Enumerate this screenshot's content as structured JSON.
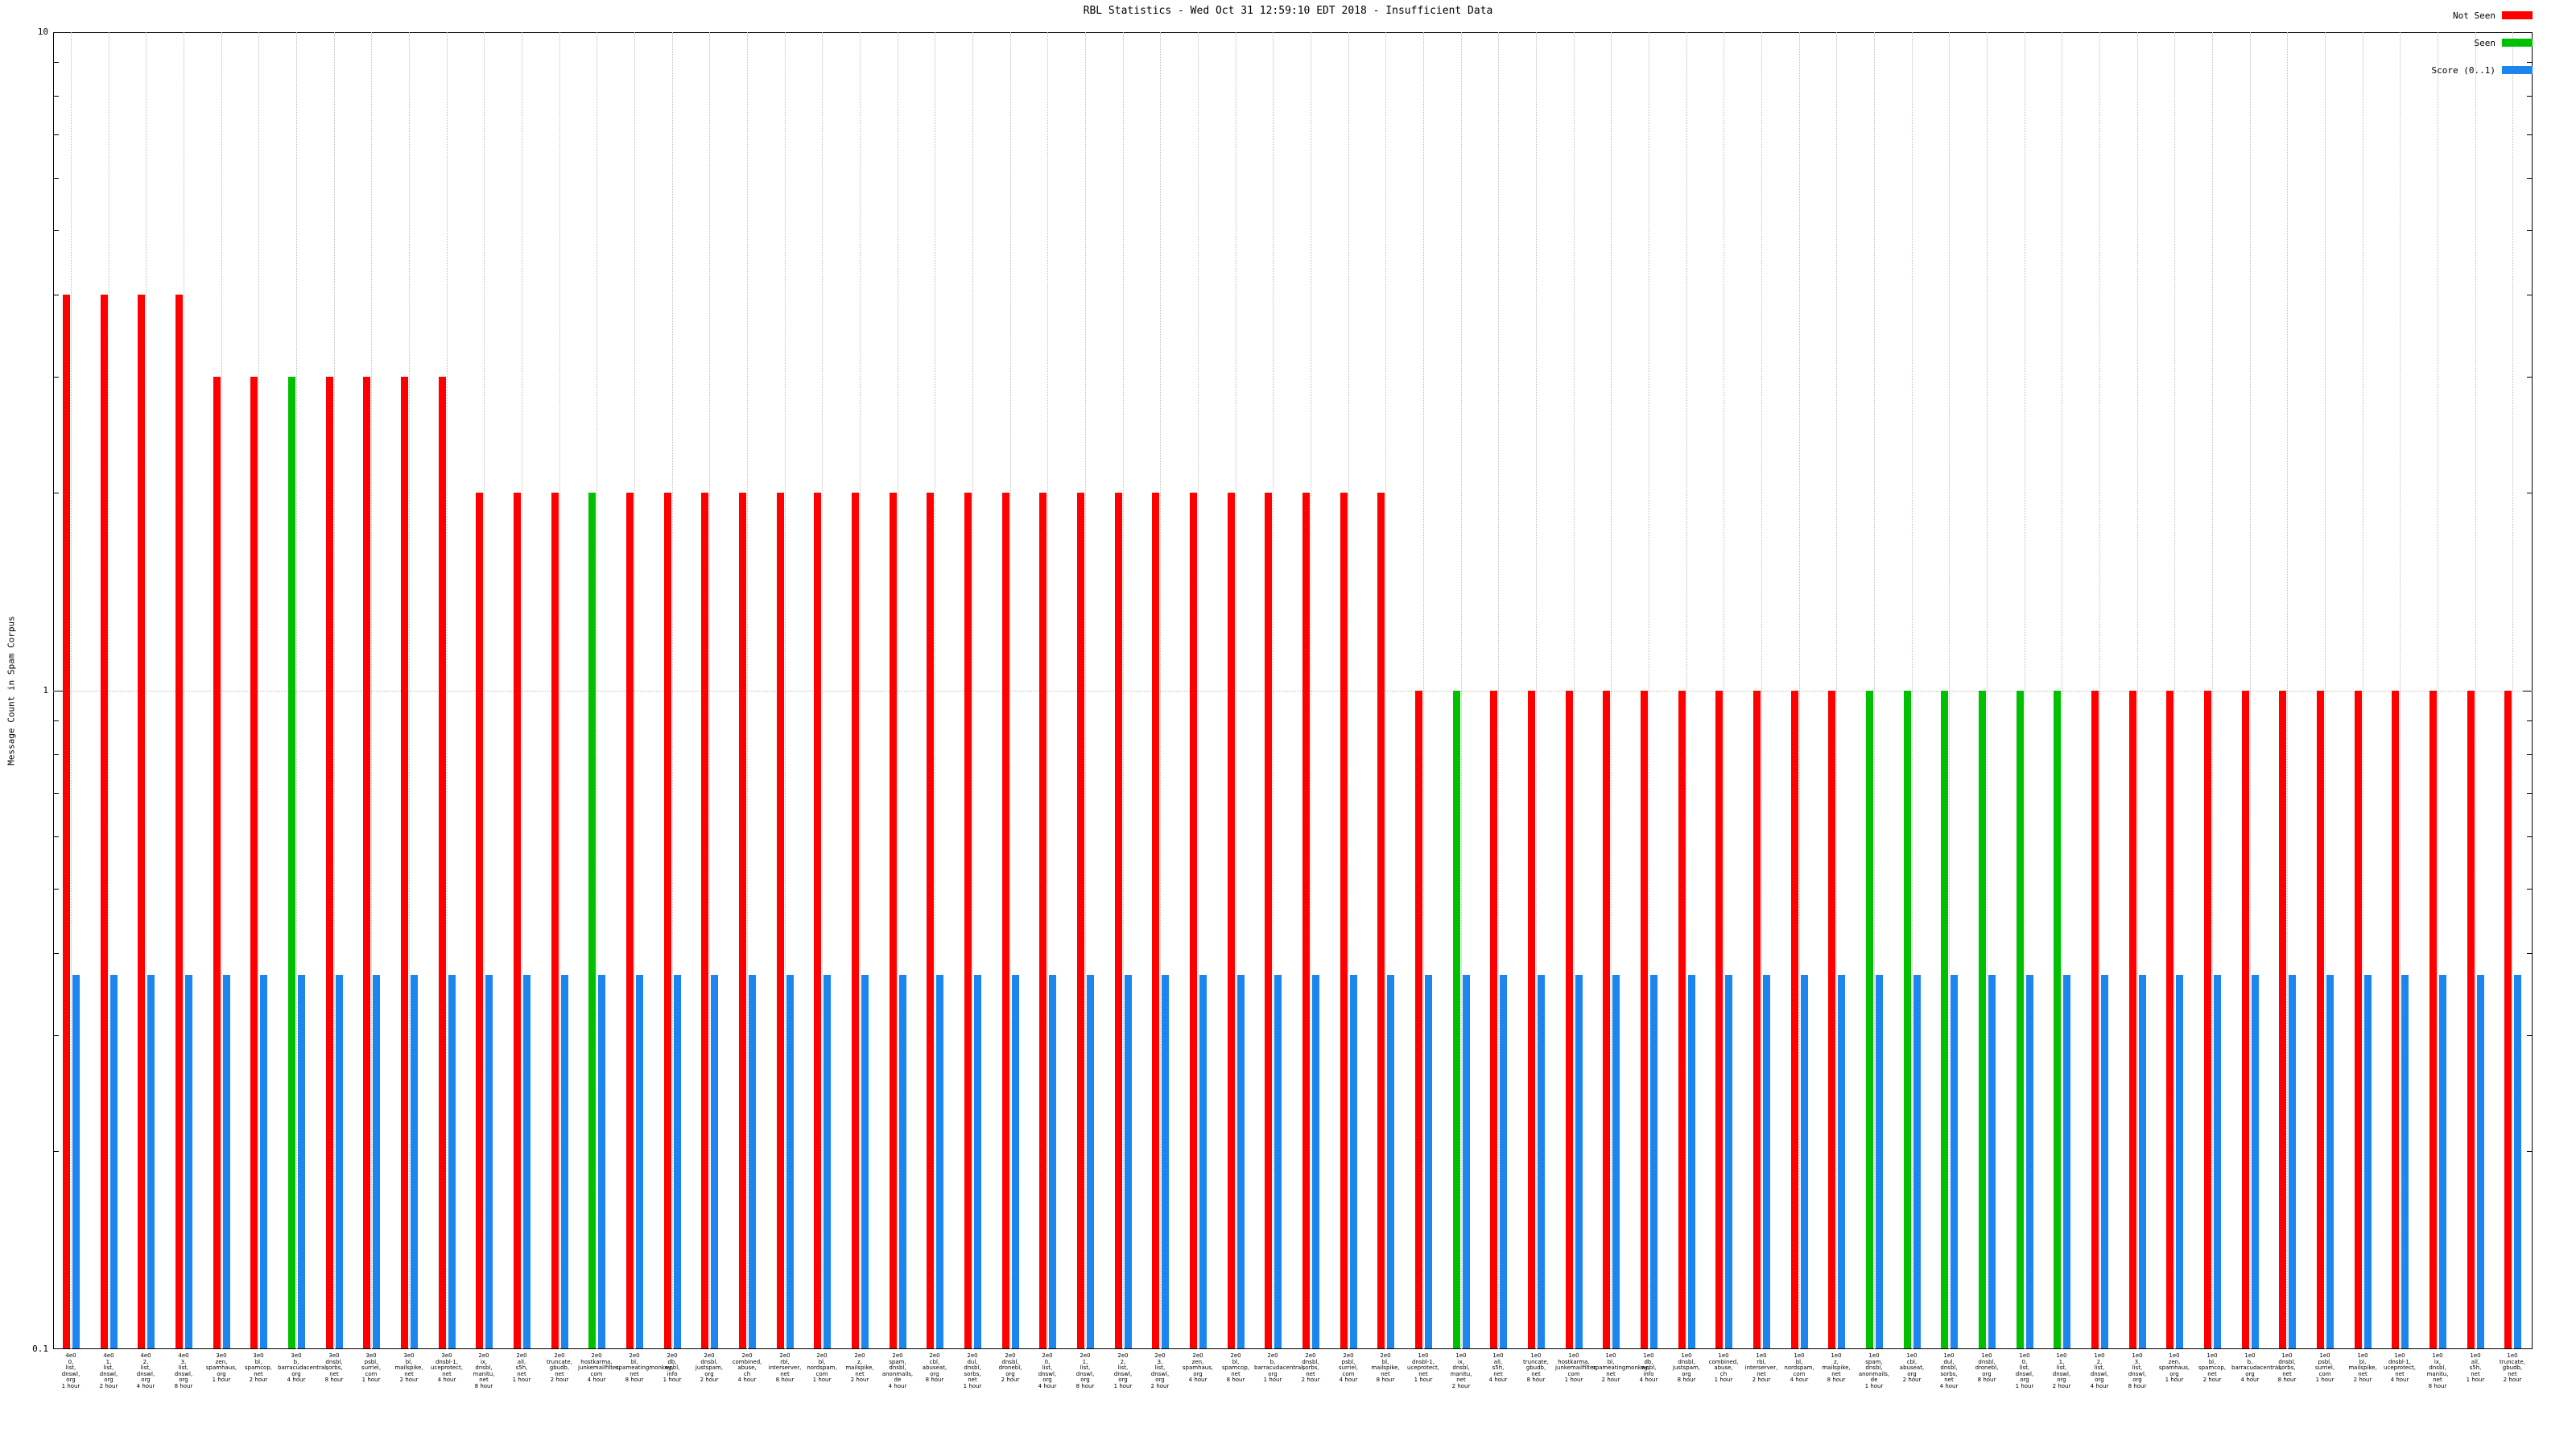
{
  "legend": [
    {
      "label": "Not Seen",
      "color": "#ff0000"
    },
    {
      "label": "Seen",
      "color": "#00c000"
    },
    {
      "label": "Score (0..1)",
      "color": "#1c86ee"
    }
  ],
  "chart_data": {
    "type": "bar",
    "title": "RBL Statistics - Wed Oct 31 12:59:10 EDT 2018 - Insufficient Data",
    "ylabel": "Message Count in Spam Corpus",
    "xlabel": "",
    "yscale": "log",
    "ylim": [
      0.1,
      10
    ],
    "yticks": [
      "10",
      "1",
      "0.1"
    ],
    "grid": "dotted",
    "legend_position": "top-right",
    "score_value": 0.37,
    "series": [
      {
        "name": "Not Seen",
        "color": "#ff0000",
        "role": "message-count-bar"
      },
      {
        "name": "Seen",
        "color": "#00c000",
        "role": "message-count-bar"
      },
      {
        "name": "Score (0..1)",
        "color": "#1c86ee",
        "role": "score-bar"
      }
    ],
    "groups": [
      {
        "host": "0.list.dnswl.org",
        "hours": "1 hour",
        "count": 4,
        "seen": false
      },
      {
        "host": "1.list.dnswl.org",
        "hours": "2 hour",
        "count": 4,
        "seen": false
      },
      {
        "host": "2.list.dnswl.org",
        "hours": "4 hour",
        "count": 4,
        "seen": false
      },
      {
        "host": "3.list.dnswl.org",
        "hours": "8 hour",
        "count": 4,
        "seen": false
      },
      {
        "host": "zen.spamhaus.org",
        "hours": "1 hour",
        "count": 3,
        "seen": false
      },
      {
        "host": "bl.spamcop.net",
        "hours": "2 hour",
        "count": 3,
        "seen": false
      },
      {
        "host": "b.barracudacentral.org",
        "hours": "4 hour",
        "count": 3,
        "seen": true
      },
      {
        "host": "dnsbl.sorbs.net",
        "hours": "8 hour",
        "count": 3,
        "seen": false
      },
      {
        "host": "psbl.surriel.com",
        "hours": "1 hour",
        "count": 3,
        "seen": false
      },
      {
        "host": "bl.mailspike.net",
        "hours": "2 hour",
        "count": 3,
        "seen": false
      },
      {
        "host": "dnsbl-1.uceprotect.net",
        "hours": "4 hour",
        "count": 3,
        "seen": false
      },
      {
        "host": "ix.dnsbl.manitu.net",
        "hours": "8 hour",
        "count": 2,
        "seen": false
      },
      {
        "host": "all.s5h.net",
        "hours": "1 hour",
        "count": 2,
        "seen": false
      },
      {
        "host": "truncate.gbudb.net",
        "hours": "2 hour",
        "count": 2,
        "seen": false
      },
      {
        "host": "hostkarma.junkemailfilter.com",
        "hours": "4 hour",
        "count": 2,
        "seen": true
      },
      {
        "host": "bl.spameatingmonkey.net",
        "hours": "8 hour",
        "count": 2,
        "seen": false
      },
      {
        "host": "db.wpbl.info",
        "hours": "1 hour",
        "count": 2,
        "seen": false
      },
      {
        "host": "dnsbl.justspam.org",
        "hours": "2 hour",
        "count": 2,
        "seen": false
      },
      {
        "host": "combined.abuse.ch",
        "hours": "4 hour",
        "count": 2,
        "seen": false
      },
      {
        "host": "rbl.interserver.net",
        "hours": "8 hour",
        "count": 2,
        "seen": false
      },
      {
        "host": "bl.nordspam.com",
        "hours": "1 hour",
        "count": 2,
        "seen": false
      },
      {
        "host": "z.mailspike.net",
        "hours": "2 hour",
        "count": 2,
        "seen": false
      },
      {
        "host": "spam.dnsbl.anonmails.de",
        "hours": "4 hour",
        "count": 2,
        "seen": false
      },
      {
        "host": "cbl.abuseat.org",
        "hours": "8 hour",
        "count": 2,
        "seen": false
      },
      {
        "host": "dul.dnsbl.sorbs.net",
        "hours": "1 hour",
        "count": 2,
        "seen": false
      },
      {
        "host": "dnsbl.dronebl.org",
        "hours": "2 hour",
        "count": 2,
        "seen": false
      },
      {
        "host": "0.list.dnswl.org",
        "hours": "4 hour",
        "count": 2,
        "seen": false
      },
      {
        "host": "1.list.dnswl.org",
        "hours": "8 hour",
        "count": 2,
        "seen": false
      },
      {
        "host": "2.list.dnswl.org",
        "hours": "1 hour",
        "count": 2,
        "seen": false
      },
      {
        "host": "3.list.dnswl.org",
        "hours": "2 hour",
        "count": 2,
        "seen": false
      },
      {
        "host": "zen.spamhaus.org",
        "hours": "4 hour",
        "count": 2,
        "seen": false
      },
      {
        "host": "bl.spamcop.net",
        "hours": "8 hour",
        "count": 2,
        "seen": false
      },
      {
        "host": "b.barracudacentral.org",
        "hours": "1 hour",
        "count": 2,
        "seen": false
      },
      {
        "host": "dnsbl.sorbs.net",
        "hours": "2 hour",
        "count": 2,
        "seen": false
      },
      {
        "host": "psbl.surriel.com",
        "hours": "4 hour",
        "count": 2,
        "seen": false
      },
      {
        "host": "bl.mailspike.net",
        "hours": "8 hour",
        "count": 2,
        "seen": false
      },
      {
        "host": "dnsbl-1.uceprotect.net",
        "hours": "1 hour",
        "count": 1,
        "seen": false
      },
      {
        "host": "ix.dnsbl.manitu.net",
        "hours": "2 hour",
        "count": 1,
        "seen": true
      },
      {
        "host": "all.s5h.net",
        "hours": "4 hour",
        "count": 1,
        "seen": false
      },
      {
        "host": "truncate.gbudb.net",
        "hours": "8 hour",
        "count": 1,
        "seen": false
      },
      {
        "host": "hostkarma.junkemailfilter.com",
        "hours": "1 hour",
        "count": 1,
        "seen": false
      },
      {
        "host": "bl.spameatingmonkey.net",
        "hours": "2 hour",
        "count": 1,
        "seen": false
      },
      {
        "host": "db.wpbl.info",
        "hours": "4 hour",
        "count": 1,
        "seen": false
      },
      {
        "host": "dnsbl.justspam.org",
        "hours": "8 hour",
        "count": 1,
        "seen": false
      },
      {
        "host": "combined.abuse.ch",
        "hours": "1 hour",
        "count": 1,
        "seen": false
      },
      {
        "host": "rbl.interserver.net",
        "hours": "2 hour",
        "count": 1,
        "seen": false
      },
      {
        "host": "bl.nordspam.com",
        "hours": "4 hour",
        "count": 1,
        "seen": false
      },
      {
        "host": "z.mailspike.net",
        "hours": "8 hour",
        "count": 1,
        "seen": false
      },
      {
        "host": "spam.dnsbl.anonmails.de",
        "hours": "1 hour",
        "count": 1,
        "seen": true
      },
      {
        "host": "cbl.abuseat.org",
        "hours": "2 hour",
        "count": 1,
        "seen": true
      },
      {
        "host": "dul.dnsbl.sorbs.net",
        "hours": "4 hour",
        "count": 1,
        "seen": true
      },
      {
        "host": "dnsbl.dronebl.org",
        "hours": "8 hour",
        "count": 1,
        "seen": true
      },
      {
        "host": "0.list.dnswl.org",
        "hours": "1 hour",
        "count": 1,
        "seen": true
      },
      {
        "host": "1.list.dnswl.org",
        "hours": "2 hour",
        "count": 1,
        "seen": true
      },
      {
        "host": "2.list.dnswl.org",
        "hours": "4 hour",
        "count": 1,
        "seen": false
      },
      {
        "host": "3.list.dnswl.org",
        "hours": "8 hour",
        "count": 1,
        "seen": false
      },
      {
        "host": "zen.spamhaus.org",
        "hours": "1 hour",
        "count": 1,
        "seen": false
      },
      {
        "host": "bl.spamcop.net",
        "hours": "2 hour",
        "count": 1,
        "seen": false
      },
      {
        "host": "b.barracudacentral.org",
        "hours": "4 hour",
        "count": 1,
        "seen": false
      },
      {
        "host": "dnsbl.sorbs.net",
        "hours": "8 hour",
        "count": 1,
        "seen": false
      },
      {
        "host": "psbl.surriel.com",
        "hours": "1 hour",
        "count": 1,
        "seen": false
      },
      {
        "host": "bl.mailspike.net",
        "hours": "2 hour",
        "count": 1,
        "seen": false
      },
      {
        "host": "dnsbl-1.uceprotect.net",
        "hours": "4 hour",
        "count": 1,
        "seen": false
      },
      {
        "host": "ix.dnsbl.manitu.net",
        "hours": "8 hour",
        "count": 1,
        "seen": false
      },
      {
        "host": "all.s5h.net",
        "hours": "1 hour",
        "count": 1,
        "seen": false
      },
      {
        "host": "truncate.gbudb.net",
        "hours": "2 hour",
        "count": 1,
        "seen": false
      }
    ]
  }
}
